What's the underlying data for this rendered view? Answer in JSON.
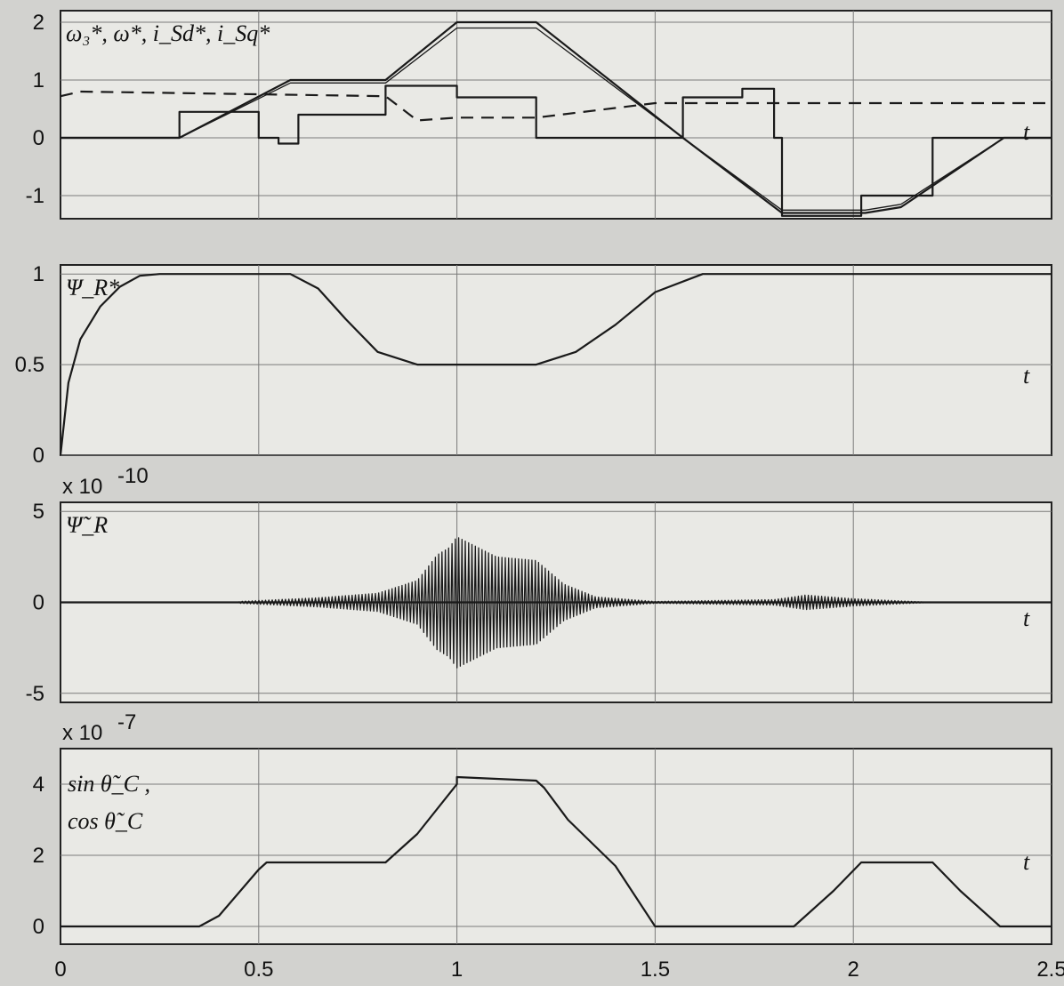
{
  "figure": {
    "x_axis": {
      "range": [
        0,
        2.5
      ],
      "ticks": [
        0,
        0.5,
        1,
        1.5,
        2,
        2.5
      ],
      "tick_labels": [
        "0",
        "0.5",
        "1",
        "1.5",
        "2",
        "2.5"
      ],
      "label": "t"
    }
  },
  "chart_data": [
    {
      "type": "line",
      "ylim": [
        -1.4,
        2.2
      ],
      "yticks": [
        -1,
        0,
        1,
        2
      ],
      "ytick_labels": [
        "-1",
        "0",
        "1",
        "2"
      ],
      "legend_text": "ω₃*, ω*, i_Sd*, i_Sq*",
      "xlabel": "t",
      "series": [
        {
          "name": "ω₃*",
          "style": "solid",
          "x": [
            0,
            0.3,
            0.58,
            0.82,
            1.0,
            1.2,
            1.57,
            1.82,
            2.03,
            2.12,
            2.38,
            2.5
          ],
          "y": [
            0,
            0,
            1.0,
            1.0,
            2.0,
            2.0,
            0,
            -1.3,
            -1.3,
            -1.2,
            0,
            0
          ]
        },
        {
          "name": "ω*",
          "style": "dash-dot",
          "x": [
            0,
            0.3,
            0.58,
            0.82,
            1.0,
            1.2,
            1.57,
            1.82,
            2.03,
            2.12,
            2.38,
            2.5
          ],
          "y": [
            0,
            0,
            0.95,
            0.95,
            1.9,
            1.9,
            0,
            -1.25,
            -1.25,
            -1.15,
            0,
            0
          ]
        },
        {
          "name": "i_Sd*",
          "style": "dashed",
          "x": [
            0,
            0.05,
            0.82,
            0.9,
            1.0,
            1.2,
            1.5,
            2.5
          ],
          "y": [
            0.72,
            0.8,
            0.72,
            0.3,
            0.35,
            0.35,
            0.6,
            0.6
          ]
        },
        {
          "name": "i_Sq*",
          "style": "solid",
          "x": [
            0,
            0.3,
            0.3,
            0.5,
            0.5,
            0.55,
            0.55,
            0.6,
            0.6,
            0.82,
            0.82,
            1.0,
            1.0,
            1.2,
            1.2,
            1.57,
            1.57,
            1.72,
            1.72,
            1.8,
            1.8,
            1.82,
            1.82,
            2.02,
            2.02,
            2.2,
            2.2,
            2.5
          ],
          "y": [
            0,
            0,
            0.45,
            0.45,
            0,
            0,
            -0.1,
            -0.1,
            0.4,
            0.4,
            0.9,
            0.9,
            0.7,
            0.7,
            0,
            0,
            0.7,
            0.7,
            0.85,
            0.85,
            0,
            0,
            -1.35,
            -1.35,
            -1.0,
            -1.0,
            0,
            0
          ]
        }
      ]
    },
    {
      "type": "line",
      "ylim": [
        0,
        1.05
      ],
      "yticks": [
        0,
        0.5,
        1
      ],
      "ytick_labels": [
        "0",
        "0.5",
        "1"
      ],
      "legend_text": "Ψ_R*",
      "xlabel": "t",
      "series": [
        {
          "name": "Ψ_R*",
          "style": "solid",
          "x": [
            0,
            0.02,
            0.05,
            0.1,
            0.15,
            0.2,
            0.25,
            0.3,
            0.58,
            0.65,
            0.72,
            0.8,
            0.9,
            1.0,
            1.2,
            1.3,
            1.4,
            1.5,
            1.62,
            2.5
          ],
          "y": [
            0,
            0.4,
            0.64,
            0.82,
            0.93,
            0.99,
            1.0,
            1.0,
            1.0,
            0.92,
            0.75,
            0.57,
            0.5,
            0.5,
            0.5,
            0.57,
            0.72,
            0.9,
            1.0,
            1.0
          ]
        }
      ]
    },
    {
      "type": "line",
      "ylim": [
        -5.5,
        5.5
      ],
      "yticks": [
        -5,
        0,
        5
      ],
      "ytick_labels": [
        "-5",
        "0",
        "5"
      ],
      "scale_label": "x 10",
      "scale_exponent": "-10",
      "legend_text": "Ψ̃_R",
      "xlabel": "t",
      "series": [
        {
          "name": "Ψ̃_R",
          "style": "oscillation",
          "envelope_x": [
            0.45,
            0.65,
            0.8,
            0.9,
            0.95,
            0.98,
            1.0,
            1.1,
            1.2,
            1.27,
            1.35,
            1.5,
            1.8,
            1.88,
            2.0,
            2.2
          ],
          "envelope_y": [
            0.05,
            0.25,
            0.5,
            1.2,
            2.6,
            3.0,
            3.6,
            2.5,
            2.3,
            1.0,
            0.3,
            0.05,
            0.15,
            0.4,
            0.2,
            0.0
          ]
        }
      ]
    },
    {
      "type": "line",
      "ylim": [
        -0.5,
        5
      ],
      "yticks": [
        0,
        2,
        4
      ],
      "ytick_labels": [
        "0",
        "2",
        "4"
      ],
      "scale_label": "x 10",
      "scale_exponent": "-7",
      "legend_lines": [
        "sin θ̃_C ,",
        "cos θ̃_C"
      ],
      "xlabel": "t",
      "series": [
        {
          "name": "sin θ̃_C , cos θ̃_C",
          "style": "solid",
          "x": [
            0,
            0.35,
            0.4,
            0.5,
            0.52,
            0.82,
            0.9,
            1.0,
            1.0,
            1.2,
            1.22,
            1.28,
            1.4,
            1.5,
            1.85,
            1.95,
            2.02,
            2.2,
            2.27,
            2.37,
            2.5
          ],
          "y": [
            0,
            0,
            0.3,
            1.6,
            1.8,
            1.8,
            2.6,
            4.0,
            4.2,
            4.1,
            3.9,
            3.0,
            1.7,
            0,
            0,
            1.0,
            1.8,
            1.8,
            1.0,
            0,
            0
          ]
        }
      ]
    }
  ]
}
